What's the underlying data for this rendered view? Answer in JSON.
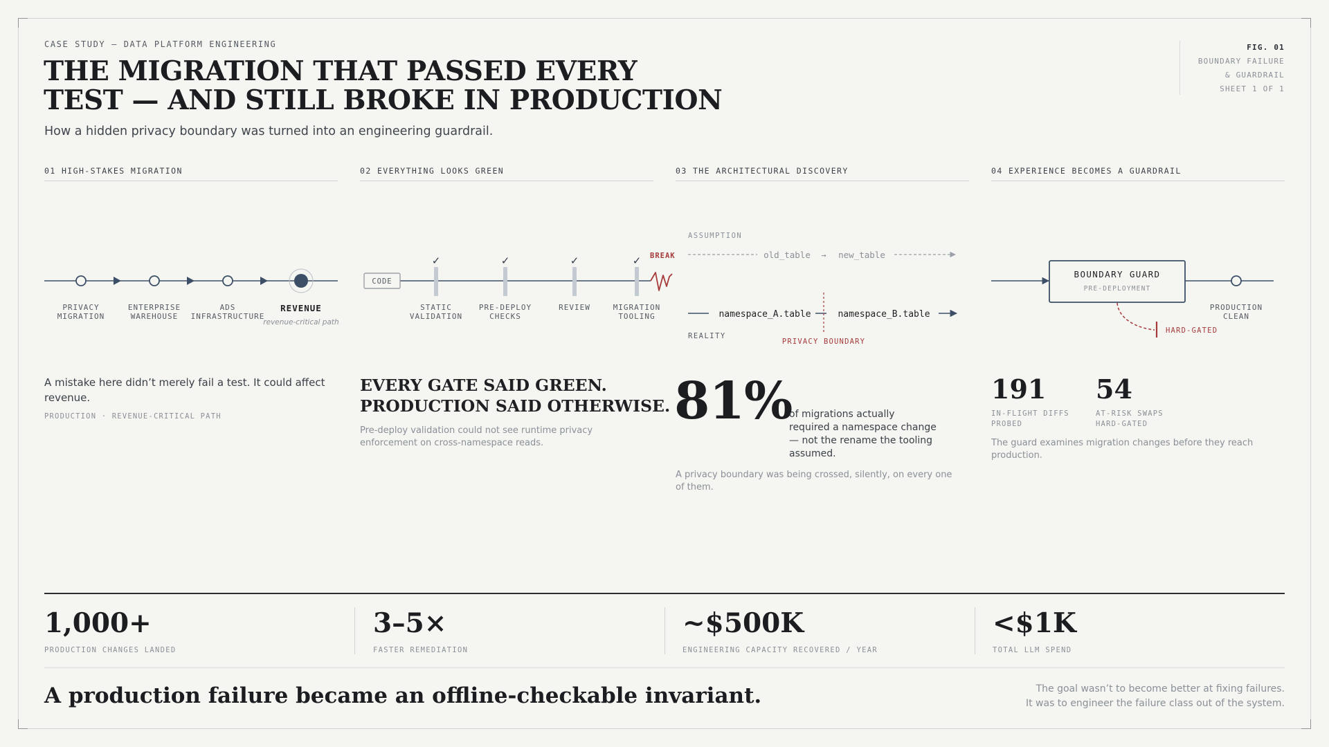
{
  "header": {
    "eyebrow": "CASE STUDY — DATA PLATFORM ENGINEERING",
    "title_line1": "THE MIGRATION THAT PASSED EVERY",
    "title_line2": "TEST — AND STILL BROKE IN PRODUCTION",
    "subtitle": "How a hidden privacy boundary was turned into an engineering guardrail."
  },
  "fig": {
    "id": "FIG. 01",
    "line1": "BOUNDARY FAILURE",
    "line2": "& GUARDRAIL",
    "line3": "SHEET 1 OF 1"
  },
  "colors": {
    "background": "#f5f5f1",
    "ink": "#1e2024",
    "steel": "#3c4f67",
    "gate": "#c3cad2",
    "alert": "#a63a3a"
  },
  "panel1": {
    "label": "01 HIGH-STAKES MIGRATION",
    "nodes": [
      {
        "line1": "PRIVACY",
        "line2": "MIGRATION"
      },
      {
        "line1": "ENTERPRISE",
        "line2": "WAREHOUSE"
      },
      {
        "line1": "ADS",
        "line2": "INFRASTRUCTURE"
      },
      {
        "line1": "REVENUE",
        "line2": "revenue-critical path"
      }
    ],
    "body": "A mistake here didn’t merely fail a test. It could affect revenue.",
    "tag": "PRODUCTION · REVENUE-CRITICAL PATH"
  },
  "panel2": {
    "label": "02 EVERYTHING LOOKS GREEN",
    "code_label": "CODE",
    "gates": [
      {
        "line1": "STATIC",
        "line2": "VALIDATION",
        "check": "✓"
      },
      {
        "line1": "PRE-DEPLOY",
        "line2": "CHECKS",
        "check": "✓"
      },
      {
        "line1": "REVIEW",
        "line2": "",
        "check": "✓"
      },
      {
        "line1": "MIGRATION",
        "line2": "TOOLING",
        "check": "✓"
      }
    ],
    "break_label": "BREAK",
    "head_line1": "EVERY GATE SAID GREEN.",
    "head_line2": "PRODUCTION SAID OTHERWISE.",
    "body": "Pre-deploy validation could not see runtime privacy enforcement on cross-namespace reads."
  },
  "panel3": {
    "label": "03 THE ARCHITECTURAL DISCOVERY",
    "assumption_label": "ASSUMPTION",
    "assumption_from": "old_table",
    "assumption_arrow": "→",
    "assumption_to": "new_table",
    "reality_label": "REALITY",
    "reality_from": "namespace_A.table",
    "reality_to": "namespace_B.table",
    "boundary_label": "PRIVACY BOUNDARY",
    "big_stat": "81%",
    "caption": "of migrations actually required a namespace change — not the rename the tooling assumed.",
    "body": "A privacy boundary was being crossed, silently, on every one of them."
  },
  "panel4": {
    "label": "04 EXPERIENCE BECOMES A GUARDRAIL",
    "guard_title": "BOUNDARY GUARD",
    "guard_sub": "PRE-DEPLOYMENT",
    "gate_label": "HARD-GATED",
    "clean_line1": "PRODUCTION",
    "clean_line2": "CLEAN",
    "stats": [
      {
        "value": "191",
        "line1": "IN-FLIGHT DIFFS",
        "line2": "PROBED"
      },
      {
        "value": "54",
        "line1": "AT-RISK SWAPS",
        "line2": "HARD-GATED"
      }
    ],
    "body": "The guard examines migration changes before they reach production."
  },
  "stats_bar": [
    {
      "value": "1,000+",
      "label": "PRODUCTION CHANGES LANDED"
    },
    {
      "value": "3–5×",
      "label": "FASTER REMEDIATION"
    },
    {
      "value": "~$500K",
      "label": "ENGINEERING CAPACITY RECOVERED / YEAR"
    },
    {
      "value": "<$1K",
      "label": "TOTAL LLM SPEND"
    }
  ],
  "closing": {
    "statement": "A production failure became an offline-checkable invariant.",
    "note_line1": "The goal wasn’t to become better at fixing failures.",
    "note_line2": "It was to engineer the failure class out of the system."
  }
}
